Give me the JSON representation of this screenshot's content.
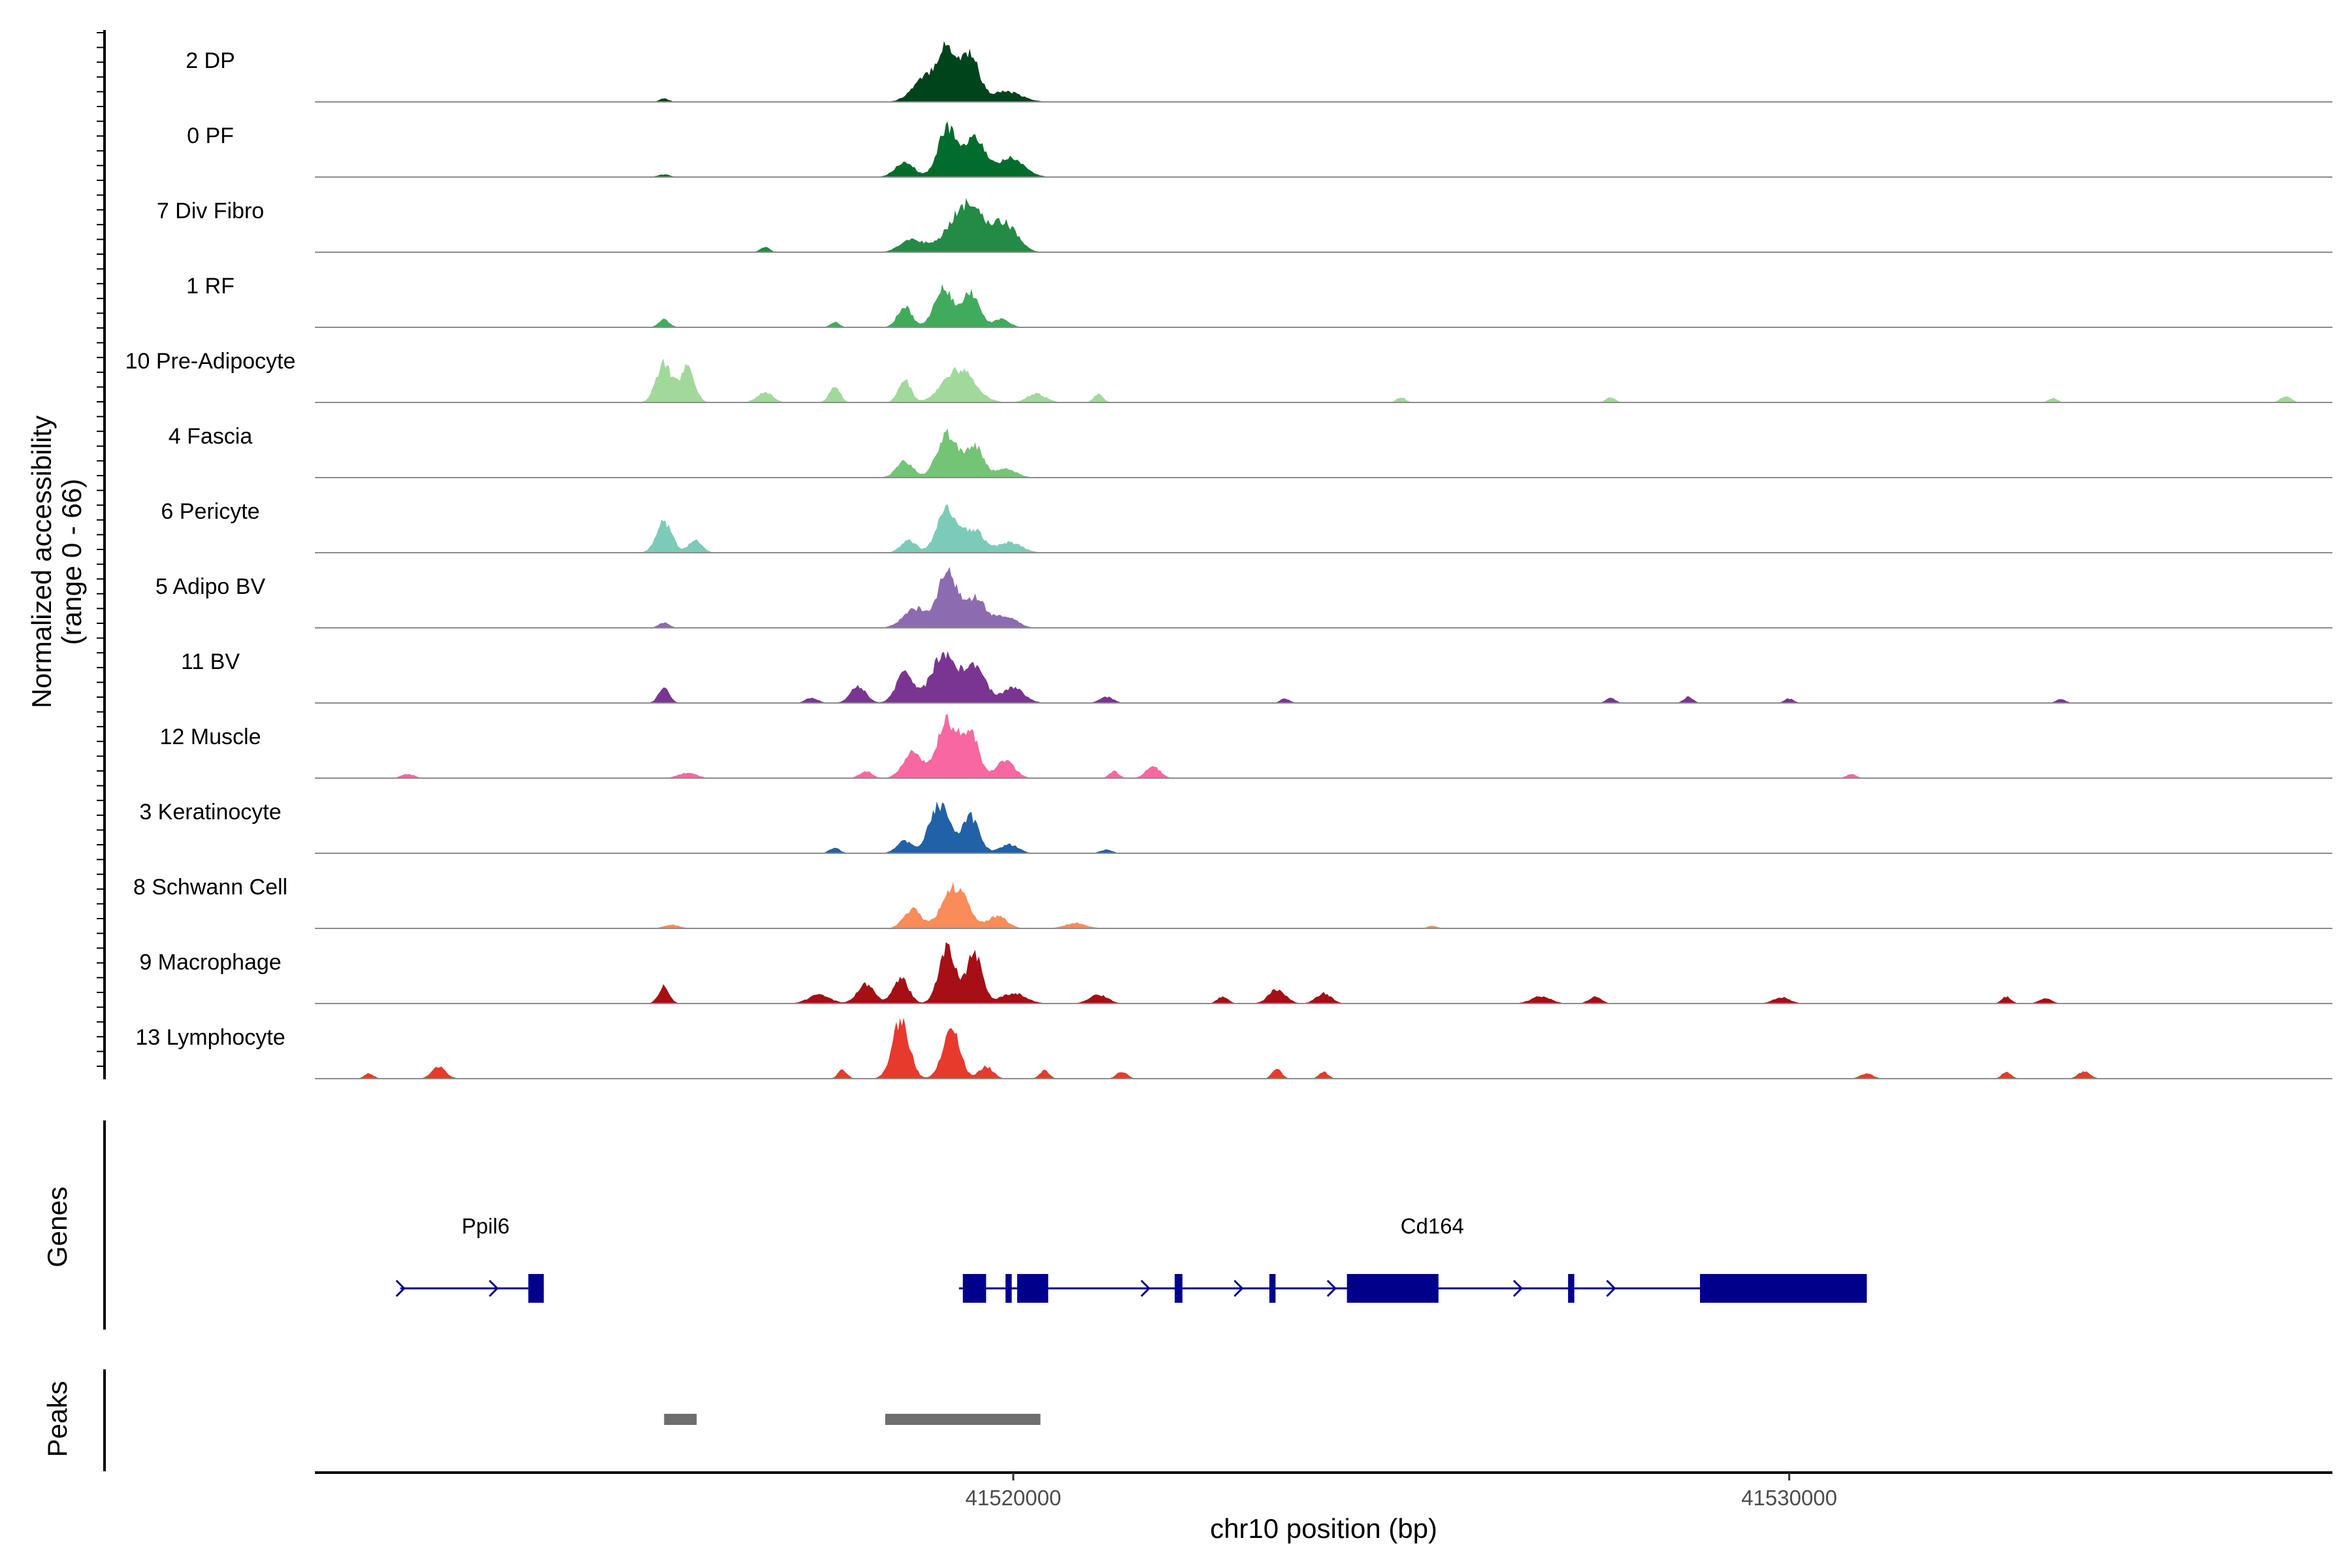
{
  "chart_data": {
    "type": "area",
    "title": "",
    "region": {
      "chrom": "chr10",
      "start": 41511000,
      "end": 41537000
    },
    "ylabel_line1": "Normalized accessibility",
    "ylabel_line2": "(range 0 - 66)",
    "ylim": [
      0,
      66
    ],
    "xlabel": "chr10 position (bp)",
    "x_ticks": [
      {
        "value": 41520000,
        "label": "41520000"
      },
      {
        "value": 41530000,
        "label": "41530000"
      }
    ],
    "genes_label": "Genes",
    "peaks_label": "Peaks",
    "tracks": [
      {
        "name": "2 DP",
        "color": "#00441b",
        "peaks": [
          [
            41519150,
            60,
            130
          ],
          [
            41519450,
            52,
            110
          ],
          [
            41518850,
            25,
            160
          ],
          [
            41519900,
            12,
            200
          ],
          [
            41515500,
            4,
            60
          ]
        ]
      },
      {
        "name": "0 PF",
        "color": "#006d2c",
        "peaks": [
          [
            41519150,
            58,
            120
          ],
          [
            41519500,
            45,
            120
          ],
          [
            41518600,
            18,
            120
          ],
          [
            41519950,
            22,
            180
          ],
          [
            41515500,
            3,
            80
          ]
        ]
      },
      {
        "name": "7 Div Fibro",
        "color": "#238b45",
        "peaks": [
          [
            41519400,
            55,
            220
          ],
          [
            41518700,
            15,
            150
          ],
          [
            41519900,
            30,
            160
          ],
          [
            41516800,
            6,
            60
          ]
        ]
      },
      {
        "name": "1 RF",
        "color": "#41ab5d",
        "peaks": [
          [
            41519100,
            45,
            120
          ],
          [
            41519450,
            40,
            110
          ],
          [
            41518600,
            25,
            90
          ],
          [
            41519850,
            10,
            100
          ],
          [
            41515500,
            9,
            70
          ],
          [
            41517700,
            6,
            60
          ]
        ]
      },
      {
        "name": "10 Pre-Adipocyte",
        "color": "#a1d99b",
        "peaks": [
          [
            41515500,
            45,
            100
          ],
          [
            41515800,
            40,
            90
          ],
          [
            41519300,
            38,
            200
          ],
          [
            41518600,
            26,
            80
          ],
          [
            41517700,
            18,
            70
          ],
          [
            41516800,
            12,
            100
          ],
          [
            41520300,
            10,
            120
          ],
          [
            41521100,
            10,
            60
          ],
          [
            41525000,
            6,
            60
          ],
          [
            41527700,
            6,
            60
          ],
          [
            41533400,
            5,
            60
          ],
          [
            41536400,
            7,
            70
          ]
        ]
      },
      {
        "name": "4 Fascia",
        "color": "#74c476",
        "peaks": [
          [
            41519150,
            50,
            130
          ],
          [
            41519500,
            36,
            110
          ],
          [
            41518600,
            18,
            110
          ],
          [
            41519900,
            10,
            140
          ]
        ]
      },
      {
        "name": "6 Pericyte",
        "color": "#7ccbb8",
        "peaks": [
          [
            41515500,
            36,
            100
          ],
          [
            41515900,
            14,
            90
          ],
          [
            41519150,
            50,
            130
          ],
          [
            41519500,
            26,
            120
          ],
          [
            41518650,
            14,
            100
          ],
          [
            41519950,
            12,
            160
          ]
        ]
      },
      {
        "name": "5 Adipo BV",
        "color": "#8c6bb1",
        "peaks": [
          [
            41519150,
            62,
            120
          ],
          [
            41519500,
            34,
            140
          ],
          [
            41518750,
            22,
            160
          ],
          [
            41519900,
            14,
            140
          ],
          [
            41515500,
            6,
            70
          ]
        ]
      },
      {
        "name": "11 BV",
        "color": "#7a3592",
        "peaks": [
          [
            41519100,
            56,
            160
          ],
          [
            41519500,
            42,
            140
          ],
          [
            41518600,
            34,
            110
          ],
          [
            41518000,
            20,
            100
          ],
          [
            41520000,
            18,
            140
          ],
          [
            41515500,
            18,
            70
          ],
          [
            41517400,
            6,
            80
          ],
          [
            41521200,
            7,
            90
          ],
          [
            41523500,
            5,
            60
          ],
          [
            41527700,
            6,
            60
          ],
          [
            41528700,
            7,
            60
          ],
          [
            41530000,
            5,
            60
          ],
          [
            41533500,
            5,
            60
          ]
        ]
      },
      {
        "name": "12 Muscle",
        "color": "#f768a1",
        "peaks": [
          [
            41519150,
            64,
            140
          ],
          [
            41519450,
            50,
            110
          ],
          [
            41518700,
            30,
            120
          ],
          [
            41519900,
            20,
            120
          ],
          [
            41518100,
            8,
            80
          ],
          [
            41521800,
            14,
            90
          ],
          [
            41521300,
            8,
            60
          ],
          [
            41515800,
            6,
            120
          ],
          [
            41512200,
            5,
            80
          ],
          [
            41530800,
            5,
            60
          ]
        ]
      },
      {
        "name": "3 Keratinocyte",
        "color": "#2161a8",
        "peaks": [
          [
            41519050,
            56,
            130
          ],
          [
            41519450,
            42,
            110
          ],
          [
            41518600,
            14,
            100
          ],
          [
            41519950,
            10,
            120
          ],
          [
            41517700,
            6,
            70
          ],
          [
            41521200,
            4,
            80
          ]
        ]
      },
      {
        "name": "8 Schwann Cell",
        "color": "#f98c59",
        "peaks": [
          [
            41519250,
            48,
            160
          ],
          [
            41518700,
            22,
            110
          ],
          [
            41519800,
            14,
            120
          ],
          [
            41520800,
            6,
            140
          ],
          [
            41515600,
            4,
            100
          ],
          [
            41525400,
            3,
            60
          ]
        ]
      },
      {
        "name": "9 Macrophage",
        "color": "#a50f15",
        "peaks": [
          [
            41519150,
            64,
            110
          ],
          [
            41519500,
            58,
            100
          ],
          [
            41518550,
            30,
            100
          ],
          [
            41518100,
            22,
            110
          ],
          [
            41520000,
            12,
            160
          ],
          [
            41517500,
            10,
            140
          ],
          [
            41515500,
            20,
            70
          ],
          [
            41523400,
            16,
            110
          ],
          [
            41524000,
            12,
            100
          ],
          [
            41521100,
            10,
            120
          ],
          [
            41522700,
            8,
            70
          ],
          [
            41526800,
            8,
            130
          ],
          [
            41527500,
            8,
            80
          ],
          [
            41529900,
            7,
            110
          ],
          [
            41532800,
            8,
            60
          ],
          [
            41533300,
            6,
            80
          ]
        ]
      },
      {
        "name": "13 Lymphocyte",
        "color": "#e8392d",
        "peaks": [
          [
            41518550,
            66,
            110
          ],
          [
            41519200,
            58,
            110
          ],
          [
            41519650,
            14,
            90
          ],
          [
            41512600,
            14,
            90
          ],
          [
            41517800,
            10,
            60
          ],
          [
            41520400,
            10,
            60
          ],
          [
            41521400,
            8,
            70
          ],
          [
            41523400,
            12,
            60
          ],
          [
            41524000,
            8,
            60
          ],
          [
            41532800,
            8,
            60
          ],
          [
            41531000,
            6,
            80
          ],
          [
            41533800,
            8,
            80
          ],
          [
            41511700,
            6,
            60
          ]
        ]
      }
    ],
    "genes": [
      {
        "name": "Ppil6",
        "start": 41512100,
        "end": 41513950,
        "strand": "+",
        "label_position": 41513200,
        "exons": [
          [
            41513750,
            41513950
          ]
        ]
      },
      {
        "name": "Cd164",
        "start": 41519300,
        "end": 41531000,
        "strand": "+",
        "label_position": 41525400,
        "exons": [
          [
            41519350,
            41519650
          ],
          [
            41519900,
            41519980
          ],
          [
            41520050,
            41520450
          ],
          [
            41522080,
            41522180
          ],
          [
            41523300,
            41523380
          ],
          [
            41524300,
            41525480
          ],
          [
            41527150,
            41527230
          ],
          [
            41528850,
            41531000
          ]
        ]
      }
    ],
    "peak_regions": [
      [
        41515500,
        41515920
      ],
      [
        41518350,
        41520350
      ]
    ]
  }
}
